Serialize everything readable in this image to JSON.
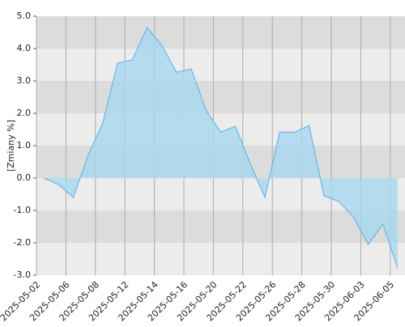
{
  "chart_data": {
    "type": "area",
    "y_label": "[Zmiany %]",
    "categories": [
      "2025-05-02",
      null,
      "2025-05-06",
      null,
      "2025-05-08",
      null,
      "2025-05-12",
      null,
      "2025-05-14",
      null,
      "2025-05-16",
      null,
      "2025-05-20",
      null,
      "2025-05-22",
      null,
      "2025-05-26",
      null,
      "2025-05-28",
      null,
      "2025-05-30",
      null,
      "2025-06-03",
      null,
      "2025-06-05"
    ],
    "values": [
      0.0,
      -0.2,
      -0.6,
      0.7,
      1.7,
      3.55,
      3.65,
      4.65,
      4.1,
      3.27,
      3.37,
      2.1,
      1.42,
      1.6,
      0.45,
      -0.6,
      1.42,
      1.42,
      1.62,
      -0.55,
      -0.72,
      -1.2,
      -2.05,
      -1.42,
      -2.78
    ],
    "color": "#5aaee6",
    "fill": "#a8d8ef",
    "ylim": [
      -3,
      5
    ],
    "yticks": [
      {
        "value": 5,
        "label": "5.0"
      },
      {
        "value": 4,
        "label": "4.0"
      },
      {
        "value": 3,
        "label": "3.0"
      },
      {
        "value": 2,
        "label": "2.0"
      },
      {
        "value": 1,
        "label": "1.0"
      },
      {
        "value": 0,
        "label": "0.0"
      },
      {
        "value": -1,
        "label": "-1.0"
      },
      {
        "value": -2,
        "label": "-2.0"
      },
      {
        "value": -3,
        "label": "-3.0"
      }
    ],
    "band_colors": [
      "#dcdcdc",
      "#ececec"
    ],
    "grid": true
  }
}
